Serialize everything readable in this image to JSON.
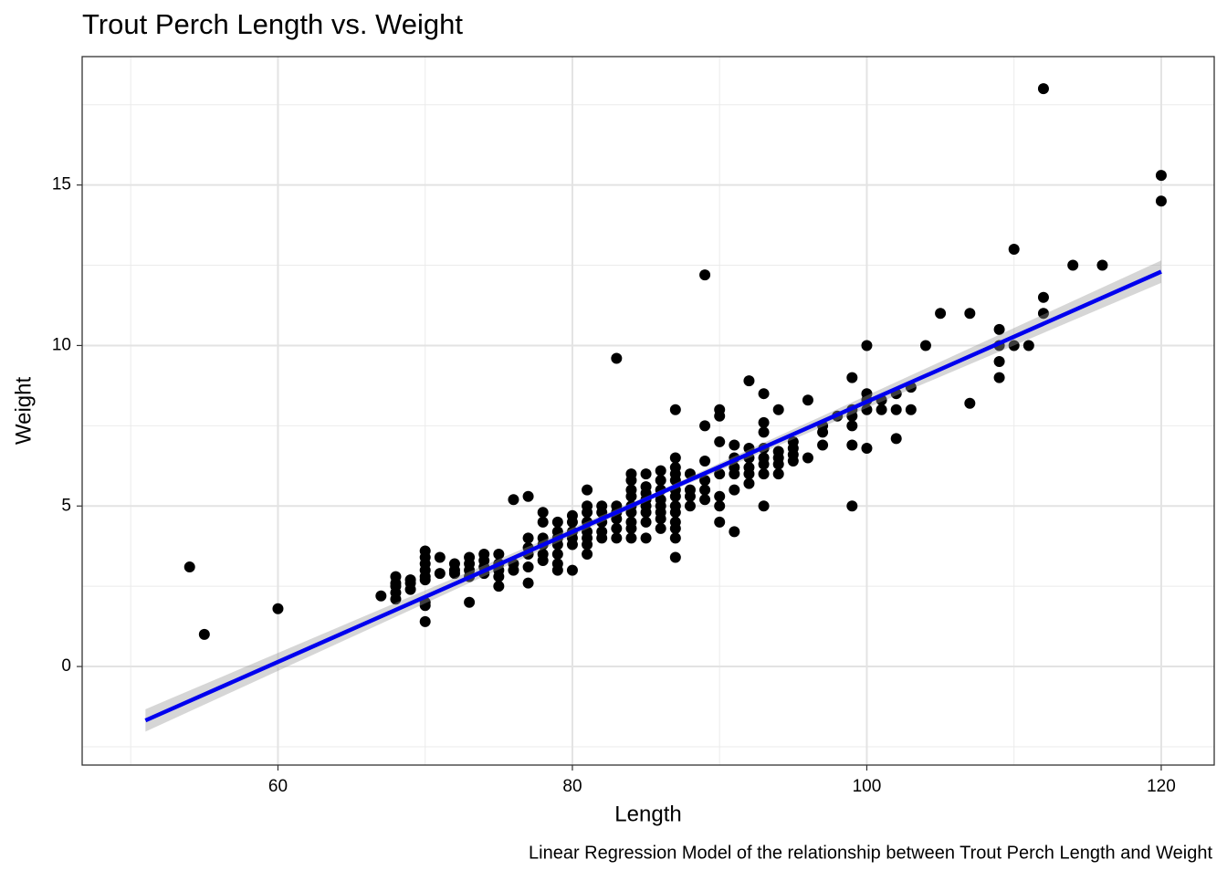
{
  "chart_data": {
    "type": "scatter",
    "title": "Trout Perch Length vs. Weight",
    "x_label": "Length",
    "y_label": "Weight",
    "caption": "Linear Regression Model of the relationship between Trout Perch Length and Weight",
    "xlim": [
      46.7,
      123.6
    ],
    "ylim": [
      -3.07,
      19.0
    ],
    "xticks": [
      60,
      80,
      100,
      120
    ],
    "yticks": [
      0,
      5,
      10,
      15
    ],
    "x_minor_grid": [
      50,
      70,
      90,
      110
    ],
    "y_minor_grid": [
      -2.5,
      2.5,
      7.5,
      12.5,
      17.5
    ],
    "grid": true,
    "color": "#000000",
    "x": [
      54,
      55,
      60,
      67,
      68,
      68,
      68,
      68,
      68,
      69,
      69,
      69,
      70,
      70,
      70,
      70,
      70,
      70,
      70,
      70,
      70,
      71,
      71,
      72,
      72,
      72,
      73,
      73,
      73,
      73,
      73,
      74,
      74,
      74,
      74,
      75,
      75,
      75,
      75,
      75,
      76,
      76,
      76,
      77,
      77,
      77,
      77,
      77,
      77,
      78,
      78,
      78,
      78,
      78,
      78,
      79,
      79,
      79,
      79,
      79,
      79,
      79,
      80,
      80,
      80,
      80,
      80,
      80,
      81,
      81,
      81,
      81,
      81,
      81,
      81,
      81,
      82,
      82,
      82,
      82,
      82,
      83,
      83,
      83,
      83,
      83,
      83,
      84,
      84,
      84,
      84,
      84,
      84,
      84,
      84,
      84,
      85,
      85,
      85,
      85,
      85,
      85,
      85,
      85,
      86,
      86,
      86,
      86,
      86,
      86,
      86,
      86,
      87,
      87,
      87,
      87,
      87,
      87,
      87,
      87,
      87,
      87,
      87,
      87,
      87,
      88,
      88,
      88,
      88,
      89,
      89,
      89,
      89,
      89,
      89,
      90,
      90,
      90,
      90,
      90,
      90,
      90,
      91,
      91,
      91,
      91,
      91,
      91,
      92,
      92,
      92,
      92,
      92,
      92,
      93,
      93,
      93,
      93,
      93,
      93,
      93,
      93,
      94,
      94,
      94,
      94,
      94,
      95,
      95,
      95,
      95,
      96,
      96,
      97,
      97,
      97,
      98,
      99,
      99,
      99,
      99,
      99,
      99,
      100,
      100,
      100,
      100,
      100,
      101,
      101,
      102,
      102,
      102,
      103,
      103,
      104,
      105,
      107,
      107,
      109,
      109,
      109,
      109,
      110,
      110,
      111,
      112,
      112,
      112,
      114,
      116,
      120,
      120
    ],
    "y": [
      3.1,
      1.0,
      1.8,
      2.2,
      2.1,
      2.3,
      2.5,
      2.6,
      2.8,
      2.4,
      2.6,
      2.7,
      1.4,
      1.9,
      2.0,
      2.7,
      2.8,
      3.0,
      3.2,
      3.4,
      3.6,
      2.9,
      3.4,
      2.9,
      3.0,
      3.2,
      2.0,
      2.8,
      3.0,
      3.2,
      3.4,
      2.9,
      3.1,
      3.3,
      3.5,
      2.5,
      2.8,
      3.0,
      3.2,
      3.5,
      3.0,
      3.2,
      5.2,
      2.6,
      3.1,
      3.5,
      3.7,
      4.0,
      5.3,
      3.3,
      3.5,
      3.8,
      4.0,
      4.5,
      4.8,
      3.0,
      3.2,
      3.5,
      3.8,
      4.0,
      4.2,
      4.5,
      3.0,
      3.8,
      4.0,
      4.2,
      4.5,
      4.7,
      3.5,
      3.8,
      4.0,
      4.2,
      4.5,
      4.8,
      5.0,
      5.5,
      4.0,
      4.2,
      4.5,
      4.8,
      5.0,
      4.0,
      4.3,
      4.6,
      4.8,
      5.0,
      9.6,
      4.0,
      4.3,
      4.5,
      4.8,
      5.0,
      5.3,
      5.5,
      5.8,
      6.0,
      4.0,
      4.5,
      4.8,
      5.0,
      5.2,
      5.4,
      5.6,
      6.0,
      4.3,
      4.6,
      4.8,
      5.0,
      5.2,
      5.5,
      5.8,
      6.1,
      3.4,
      4.0,
      4.3,
      4.5,
      4.8,
      5.0,
      5.3,
      5.5,
      5.8,
      6.0,
      6.2,
      6.5,
      8.0,
      5.0,
      5.3,
      5.5,
      6.0,
      5.2,
      5.5,
      5.8,
      6.4,
      7.5,
      12.2,
      4.5,
      5.0,
      5.3,
      6.0,
      7.0,
      7.8,
      8.0,
      4.2,
      5.5,
      6.0,
      6.2,
      6.5,
      6.9,
      5.7,
      6.0,
      6.2,
      6.5,
      6.8,
      8.9,
      5.0,
      6.0,
      6.3,
      6.5,
      6.8,
      7.3,
      7.6,
      8.5,
      6.0,
      6.3,
      6.5,
      6.7,
      8.0,
      6.4,
      6.6,
      6.8,
      7.0,
      6.5,
      8.3,
      6.9,
      7.3,
      7.5,
      7.8,
      5.0,
      6.9,
      7.5,
      7.8,
      8.0,
      9.0,
      6.8,
      8.0,
      8.3,
      8.5,
      10.0,
      8.0,
      8.3,
      7.1,
      8.0,
      8.5,
      8.0,
      8.7,
      10.0,
      11.0,
      8.2,
      11.0,
      9.0,
      9.5,
      10.0,
      10.5,
      10.0,
      13.0,
      10.0,
      11.0,
      11.5,
      18.0,
      12.5,
      12.5,
      14.5,
      15.3
    ],
    "fit": {
      "color": "#0000ee",
      "band_color": "#999999",
      "x": [
        51,
        85.5,
        120
      ],
      "y": [
        -1.68,
        5.31,
        12.3
      ],
      "lower": [
        -2.03,
        5.23,
        11.95
      ],
      "upper": [
        -1.33,
        5.39,
        12.65
      ]
    }
  }
}
